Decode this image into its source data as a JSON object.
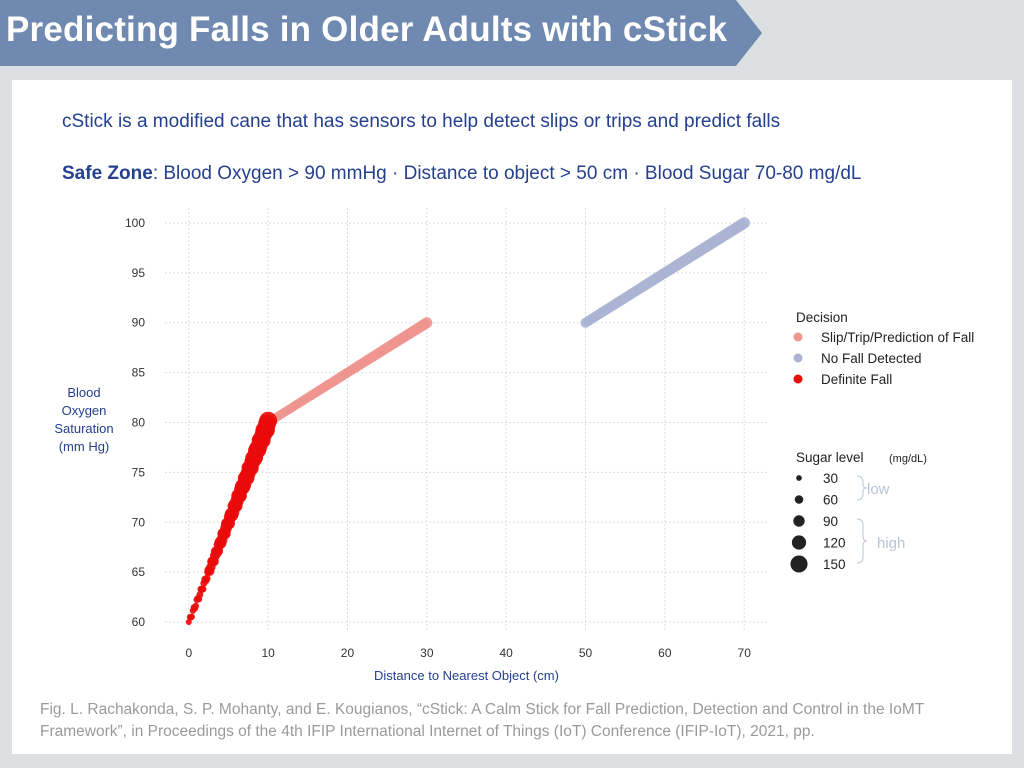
{
  "header": {
    "title": "Predicting Falls in Older Adults with cStick",
    "color": "#7089b0"
  },
  "description": "cStick is a modified cane that has sensors to help detect slips or trips and predict falls",
  "safe_zone": {
    "label": "Safe Zone",
    "text": ": Blood Oxygen > 90 mmHg · Distance to object > 50 cm · Blood Sugar 70-80 mg/dL"
  },
  "caption": "Fig. L. Rachakonda, S. P. Mohanty, and E. Kougianos, “cStick: A Calm Stick for Fall Prediction, Detection and Control in the IoMT Framework”, in Proceedings of the 4th IFIP International Internet of Things (IoT) Conference (IFIP-IoT), 2021, pp.",
  "chart_data": {
    "type": "scatter",
    "xlabel": "Distance to Nearest Object (cm)",
    "ylabel": [
      "Blood",
      "Oxygen",
      "Saturation",
      "(mm Hg)"
    ],
    "xlim": [
      -3,
      73
    ],
    "ylim": [
      59,
      101.5
    ],
    "x_ticks": [
      0,
      10,
      20,
      30,
      40,
      50,
      60,
      70
    ],
    "y_ticks": [
      60,
      65,
      70,
      75,
      80,
      85,
      90,
      95,
      100
    ],
    "grid": true,
    "series": [
      {
        "name": "Slip/Trip/Prediction of Fall",
        "color": "#ef9590",
        "x_range": [
          10,
          30
        ],
        "y_range": [
          80,
          90
        ],
        "count": 60,
        "size_range": [
          60,
          80
        ]
      },
      {
        "name": "No Fall Detected",
        "color": "#aab4d2",
        "x_range": [
          50,
          70
        ],
        "y_range": [
          90,
          100
        ],
        "count": 60,
        "size_range": [
          70,
          85
        ]
      },
      {
        "name": "Definite Fall",
        "color": "#ea0b0b",
        "x_range": [
          0,
          10
        ],
        "y_range": [
          60,
          80
        ],
        "count": 80,
        "size_range": [
          30,
          150
        ]
      }
    ],
    "legend_decision": {
      "title": "Decision",
      "placement": "right",
      "items": [
        {
          "label": "Slip/Trip/Prediction of Fall",
          "color": "#ef9590"
        },
        {
          "label": "No Fall Detected",
          "color": "#aab4d2"
        },
        {
          "label": "Definite Fall",
          "color": "#ea0b0b"
        }
      ]
    },
    "legend_size": {
      "title": "Sugar level",
      "unit": "(mg/dL)",
      "items": [
        30,
        60,
        90,
        120,
        150
      ],
      "groups": [
        {
          "label": "low",
          "items": [
            30,
            60
          ]
        },
        {
          "label": "high",
          "items": [
            90,
            120,
            150
          ]
        }
      ]
    }
  }
}
